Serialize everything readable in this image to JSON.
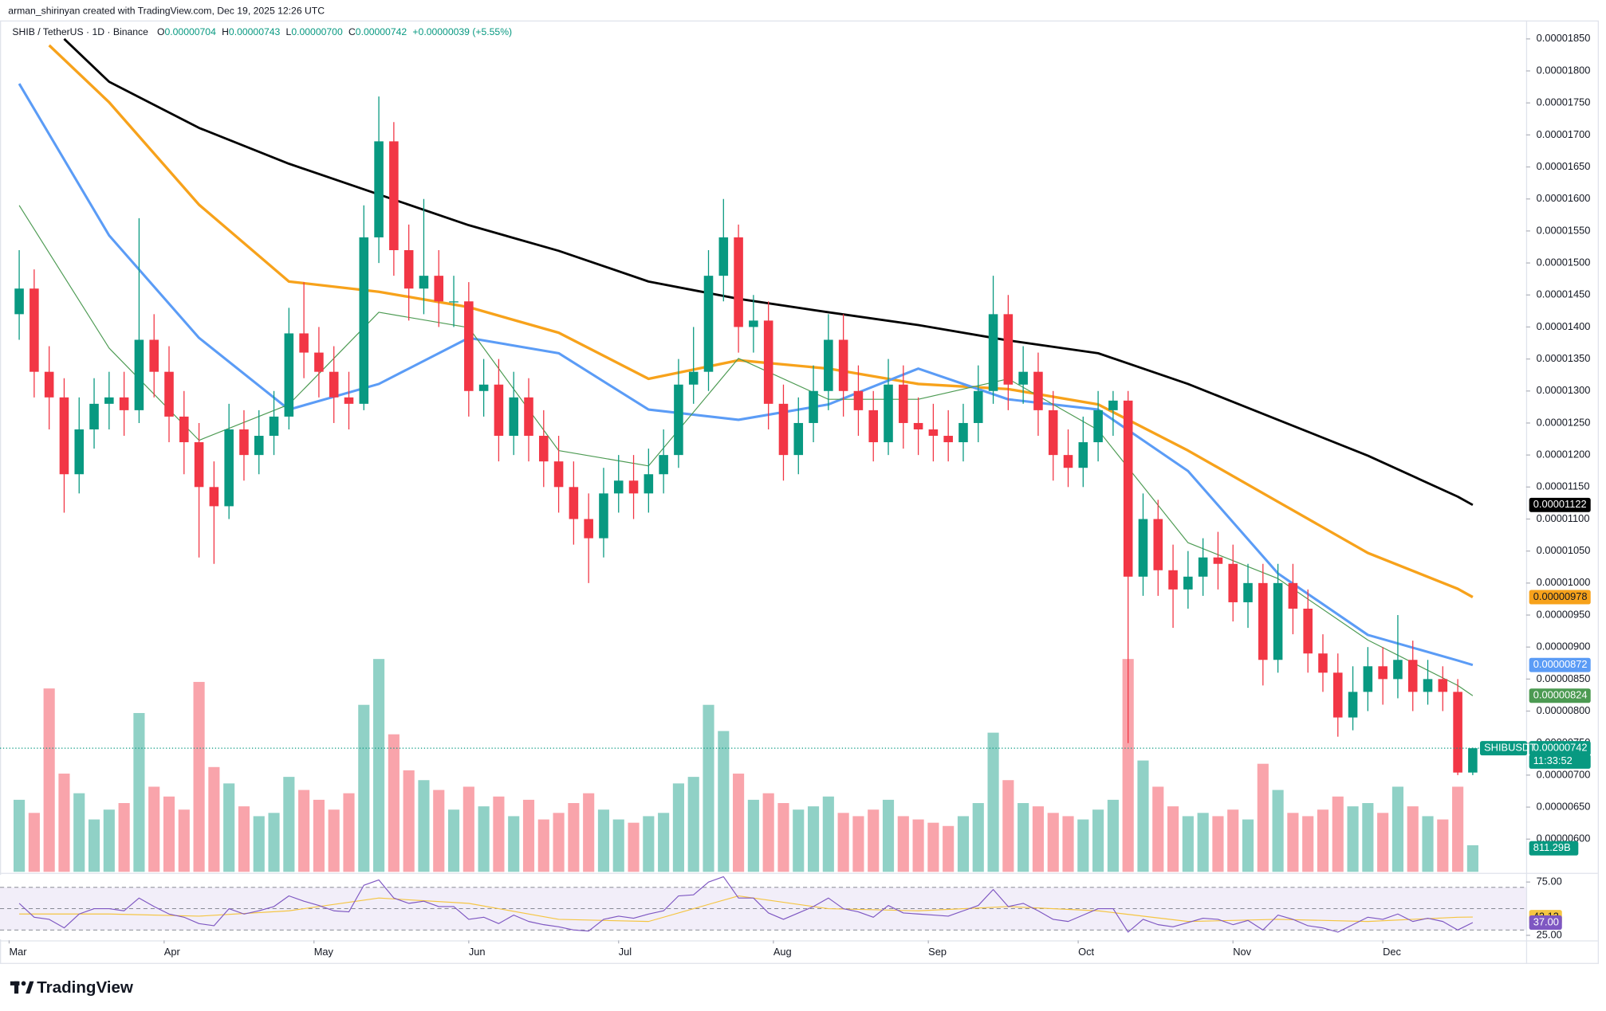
{
  "header": {
    "attribution": "arman_shirinyan created with TradingView.com, Dec 19, 2025 12:26 UTC",
    "symbol": "SHIB / TetherUS · 1D · Binance",
    "ohlc": [
      {
        "prefix": "O",
        "value": "0.00000704"
      },
      {
        "prefix": "H",
        "value": "0.00000743"
      },
      {
        "prefix": "L",
        "value": "0.00000700"
      },
      {
        "prefix": "C",
        "value": "0.00000742"
      }
    ],
    "change": "+0.00000039 (+5.55%)"
  },
  "brand": "TradingView",
  "chart_data": {
    "type": "candlestick",
    "candles": {
      "up_color": "#089981",
      "down_color": "#f23645",
      "open": [
        1.42e-05,
        1.46e-05,
        1.33e-05,
        1.29e-05,
        1.17e-05,
        1.24e-05,
        1.28e-05,
        1.29e-05,
        1.27e-05,
        1.38e-05,
        1.33e-05,
        1.26e-05,
        1.22e-05,
        1.15e-05,
        1.12e-05,
        1.24e-05,
        1.2e-05,
        1.23e-05,
        1.26e-05,
        1.39e-05,
        1.36e-05,
        1.33e-05,
        1.29e-05,
        1.28e-05,
        1.54e-05,
        1.69e-05,
        1.52e-05,
        1.46e-05,
        1.48e-05,
        1.44e-05,
        1.44e-05,
        1.3e-05,
        1.31e-05,
        1.23e-05,
        1.29e-05,
        1.23e-05,
        1.19e-05,
        1.15e-05,
        1.1e-05,
        1.07e-05,
        1.14e-05,
        1.16e-05,
        1.14e-05,
        1.17e-05,
        1.2e-05,
        1.31e-05,
        1.33e-05,
        1.48e-05,
        1.54e-05,
        1.4e-05,
        1.41e-05,
        1.28e-05,
        1.2e-05,
        1.25e-05,
        1.3e-05,
        1.38e-05,
        1.3e-05,
        1.27e-05,
        1.22e-05,
        1.31e-05,
        1.25e-05,
        1.24e-05,
        1.23e-05,
        1.22e-05,
        1.25e-05,
        1.3e-05,
        1.42e-05,
        1.31e-05,
        1.33e-05,
        1.27e-05,
        1.2e-05,
        1.18e-05,
        1.22e-05,
        1.27e-05,
        1.285e-05,
        1.01e-05,
        1.1e-05,
        1.02e-05,
        9.9e-06,
        1.01e-05,
        1.04e-05,
        1.03e-05,
        9.7e-06,
        1e-05,
        8.8e-06,
        1e-05,
        9.6e-06,
        8.9e-06,
        8.6e-06,
        7.9e-06,
        8.3e-06,
        8.7e-06,
        8.5e-06,
        8.8e-06,
        8.3e-06,
        8.5e-06,
        8.3e-06,
        7.04e-06
      ],
      "high": [
        1.52e-05,
        1.49e-05,
        1.37e-05,
        1.32e-05,
        1.29e-05,
        1.32e-05,
        1.33e-05,
        1.33e-05,
        1.57e-05,
        1.42e-05,
        1.37e-05,
        1.3e-05,
        1.25e-05,
        1.19e-05,
        1.28e-05,
        1.27e-05,
        1.27e-05,
        1.3e-05,
        1.43e-05,
        1.47e-05,
        1.4e-05,
        1.37e-05,
        1.33e-05,
        1.59e-05,
        1.76e-05,
        1.72e-05,
        1.56e-05,
        1.6e-05,
        1.52e-05,
        1.48e-05,
        1.47e-05,
        1.35e-05,
        1.35e-05,
        1.33e-05,
        1.32e-05,
        1.27e-05,
        1.23e-05,
        1.19e-05,
        1.14e-05,
        1.18e-05,
        1.2e-05,
        1.2e-05,
        1.21e-05,
        1.24e-05,
        1.35e-05,
        1.4e-05,
        1.52e-05,
        1.6e-05,
        1.56e-05,
        1.45e-05,
        1.44e-05,
        1.31e-05,
        1.29e-05,
        1.34e-05,
        1.42e-05,
        1.42e-05,
        1.34e-05,
        1.3e-05,
        1.35e-05,
        1.34e-05,
        1.29e-05,
        1.28e-05,
        1.27e-05,
        1.28e-05,
        1.34e-05,
        1.48e-05,
        1.45e-05,
        1.37e-05,
        1.36e-05,
        1.3e-05,
        1.24e-05,
        1.26e-05,
        1.3e-05,
        1.3e-05,
        1.3e-05,
        1.14e-05,
        1.13e-05,
        1.06e-05,
        1.05e-05,
        1.07e-05,
        1.08e-05,
        1.06e-05,
        1.03e-05,
        1.03e-05,
        1.03e-05,
        1.03e-05,
        9.9e-06,
        9.2e-06,
        8.9e-06,
        8.7e-06,
        9e-06,
        9e-06,
        9.5e-06,
        9.1e-06,
        8.8e-06,
        8.7e-06,
        8.5e-06,
        7.43e-06
      ],
      "low": [
        1.38e-05,
        1.29e-05,
        1.24e-05,
        1.11e-05,
        1.14e-05,
        1.21e-05,
        1.24e-05,
        1.23e-05,
        1.25e-05,
        1.29e-05,
        1.22e-05,
        1.17e-05,
        1.04e-05,
        1.03e-05,
        1.1e-05,
        1.16e-05,
        1.17e-05,
        1.2e-05,
        1.24e-05,
        1.32e-05,
        1.29e-05,
        1.25e-05,
        1.24e-05,
        1.27e-05,
        1.5e-05,
        1.48e-05,
        1.41e-05,
        1.42e-05,
        1.4e-05,
        1.4e-05,
        1.26e-05,
        1.26e-05,
        1.19e-05,
        1.2e-05,
        1.19e-05,
        1.15e-05,
        1.11e-05,
        1.06e-05,
        1e-05,
        1.04e-05,
        1.11e-05,
        1.1e-05,
        1.11e-05,
        1.14e-05,
        1.18e-05,
        1.28e-05,
        1.3e-05,
        1.44e-05,
        1.36e-05,
        1.36e-05,
        1.24e-05,
        1.16e-05,
        1.17e-05,
        1.22e-05,
        1.27e-05,
        1.26e-05,
        1.23e-05,
        1.19e-05,
        1.2e-05,
        1.21e-05,
        1.2e-05,
        1.19e-05,
        1.19e-05,
        1.19e-05,
        1.22e-05,
        1.28e-05,
        1.27e-05,
        1.28e-05,
        1.23e-05,
        1.16e-05,
        1.15e-05,
        1.15e-05,
        1.19e-05,
        1.23e-05,
        7.5e-06,
        9.8e-06,
        9.8e-06,
        9.3e-06,
        9.6e-06,
        9.8e-06,
        9.9e-06,
        9.4e-06,
        9.3e-06,
        8.4e-06,
        8.6e-06,
        9.2e-06,
        8.6e-06,
        8.3e-06,
        7.6e-06,
        7.7e-06,
        8e-06,
        8.1e-06,
        8.2e-06,
        8e-06,
        8.1e-06,
        8e-06,
        7e-06,
        7e-06
      ],
      "close": [
        1.46e-05,
        1.33e-05,
        1.29e-05,
        1.17e-05,
        1.24e-05,
        1.28e-05,
        1.29e-05,
        1.27e-05,
        1.38e-05,
        1.33e-05,
        1.26e-05,
        1.22e-05,
        1.15e-05,
        1.12e-05,
        1.24e-05,
        1.2e-05,
        1.23e-05,
        1.26e-05,
        1.39e-05,
        1.36e-05,
        1.33e-05,
        1.29e-05,
        1.28e-05,
        1.54e-05,
        1.69e-05,
        1.52e-05,
        1.46e-05,
        1.48e-05,
        1.44e-05,
        1.44e-05,
        1.3e-05,
        1.31e-05,
        1.23e-05,
        1.29e-05,
        1.23e-05,
        1.19e-05,
        1.15e-05,
        1.1e-05,
        1.07e-05,
        1.14e-05,
        1.16e-05,
        1.14e-05,
        1.17e-05,
        1.2e-05,
        1.31e-05,
        1.33e-05,
        1.48e-05,
        1.54e-05,
        1.4e-05,
        1.41e-05,
        1.28e-05,
        1.2e-05,
        1.25e-05,
        1.3e-05,
        1.38e-05,
        1.3e-05,
        1.27e-05,
        1.22e-05,
        1.31e-05,
        1.25e-05,
        1.24e-05,
        1.23e-05,
        1.22e-05,
        1.25e-05,
        1.3e-05,
        1.42e-05,
        1.31e-05,
        1.33e-05,
        1.27e-05,
        1.2e-05,
        1.18e-05,
        1.22e-05,
        1.27e-05,
        1.285e-05,
        1.01e-05,
        1.1e-05,
        1.02e-05,
        9.9e-06,
        1.01e-05,
        1.04e-05,
        1.03e-05,
        9.7e-06,
        1e-05,
        8.8e-06,
        1e-05,
        9.6e-06,
        8.9e-06,
        8.6e-06,
        7.9e-06,
        8.3e-06,
        8.7e-06,
        8.5e-06,
        8.8e-06,
        8.3e-06,
        8.5e-06,
        8.3e-06,
        7.04e-06,
        7.42e-06
      ]
    },
    "xlim": [
      -1.28,
      100.56
    ],
    "xticks": [
      {
        "value": -0.67,
        "label": "Mar"
      },
      {
        "value": 9.67,
        "label": "Apr"
      },
      {
        "value": 19.67,
        "label": "May"
      },
      {
        "value": 30,
        "label": "Jun"
      },
      {
        "value": 40,
        "label": "Jul"
      },
      {
        "value": 50.33,
        "label": "Aug"
      },
      {
        "value": 60.67,
        "label": "Sep"
      },
      {
        "value": 70.67,
        "label": "Oct"
      },
      {
        "value": 81,
        "label": "Nov"
      },
      {
        "value": 91,
        "label": "Dec"
      }
    ],
    "ylim": [
      5.489e-06,
      1.8788e-05
    ],
    "yticks": [
      {
        "value": 6e-06,
        "label": "0.00000600"
      },
      {
        "value": 6.5e-06,
        "label": "0.00000650"
      },
      {
        "value": 7e-06,
        "label": "0.00000700"
      },
      {
        "value": 7.5e-06,
        "label": "0.00000750"
      },
      {
        "value": 8e-06,
        "label": "0.00000800"
      },
      {
        "value": 8.5e-06,
        "label": "0.00000850"
      },
      {
        "value": 9e-06,
        "label": "0.00000900"
      },
      {
        "value": 9.5e-06,
        "label": "0.00000950"
      },
      {
        "value": 1e-05,
        "label": "0.00001000"
      },
      {
        "value": 1.05e-05,
        "label": "0.00001050"
      },
      {
        "value": 1.1e-05,
        "label": "0.00001100"
      },
      {
        "value": 1.15e-05,
        "label": "0.00001150"
      },
      {
        "value": 1.2e-05,
        "label": "0.00001200"
      },
      {
        "value": 1.25e-05,
        "label": "0.00001250"
      },
      {
        "value": 1.3e-05,
        "label": "0.00001300"
      },
      {
        "value": 1.35e-05,
        "label": "0.00001350"
      },
      {
        "value": 1.4e-05,
        "label": "0.00001400"
      },
      {
        "value": 1.45e-05,
        "label": "0.00001450"
      },
      {
        "value": 1.5e-05,
        "label": "0.00001500"
      },
      {
        "value": 1.55e-05,
        "label": "0.00001550"
      },
      {
        "value": 1.6e-05,
        "label": "0.00001600"
      },
      {
        "value": 1.65e-05,
        "label": "0.00001650"
      },
      {
        "value": 1.7e-05,
        "label": "0.00001700"
      },
      {
        "value": 1.75e-05,
        "label": "0.00001750"
      },
      {
        "value": 1.8e-05,
        "label": "0.00001800"
      },
      {
        "value": 1.85e-05,
        "label": "0.00001850"
      }
    ],
    "moving_averages": [
      {
        "color": "#000000",
        "width": 2.2,
        "label": "0.00001122",
        "x": [
          3,
          6,
          12,
          18,
          24,
          30,
          36,
          42,
          48,
          54,
          60,
          66,
          72,
          78,
          84,
          90,
          96,
          97
        ],
        "values": [
          1.85e-05,
          1.783e-05,
          1.711e-05,
          1.655e-05,
          1.607e-05,
          1.559e-05,
          1.519e-05,
          1.471e-05,
          1.444e-05,
          1.423e-05,
          1.403e-05,
          1.379e-05,
          1.359e-05,
          1.311e-05,
          1.255e-05,
          1.199e-05,
          1.135e-05,
          1.122e-05
        ]
      },
      {
        "color": "#f7a21b",
        "width": 2.6,
        "label": "0.00000978",
        "x": [
          2,
          6,
          12,
          18,
          24,
          30,
          36,
          42,
          48,
          54,
          60,
          66,
          72,
          78,
          84,
          90,
          96,
          97
        ],
        "values": [
          1.84e-05,
          1.751e-05,
          1.591e-05,
          1.471e-05,
          1.455e-05,
          1.431e-05,
          1.391e-05,
          1.319e-05,
          1.348e-05,
          1.335e-05,
          1.311e-05,
          1.303e-05,
          1.279e-05,
          1.207e-05,
          1.127e-05,
          1.047e-05,
          9.91e-06,
          9.78e-06
        ]
      },
      {
        "color": "#5b9cf6",
        "width": 2.4,
        "label": "0.00000872",
        "x": [
          0,
          6,
          12,
          18,
          24,
          30,
          36,
          42,
          48,
          54,
          60,
          66,
          72,
          78,
          84,
          90,
          96,
          97
        ],
        "values": [
          1.78e-05,
          1.543e-05,
          1.383e-05,
          1.271e-05,
          1.311e-05,
          1.383e-05,
          1.359e-05,
          1.271e-05,
          1.255e-05,
          1.279e-05,
          1.335e-05,
          1.287e-05,
          1.271e-05,
          1.175e-05,
          1.015e-05,
          9.19e-06,
          8.79e-06,
          8.72e-06
        ]
      },
      {
        "color": "#4c9a52",
        "width": 0.9,
        "label": "0.00000824",
        "x": [
          0,
          6,
          12,
          18,
          24,
          30,
          36,
          42,
          48,
          54,
          60,
          66,
          72,
          78,
          84,
          90,
          96,
          97
        ],
        "values": [
          1.59e-05,
          1.367e-05,
          1.223e-05,
          1.279e-05,
          1.423e-05,
          1.399e-05,
          1.207e-05,
          1.183e-05,
          1.351e-05,
          1.287e-05,
          1.287e-05,
          1.319e-05,
          1.239e-05,
          1.063e-05,
          1.007e-05,
          9.11e-06,
          8.4e-06,
          8.24e-06
        ]
      }
    ],
    "last_price": {
      "label": "0.00000742",
      "symbol": "SHIBUSDT",
      "countdown": "11:33:52"
    },
    "volume": {
      "vlim": [
        0,
        26000
      ],
      "label": "811.29B",
      "values": [
        2200,
        1800,
        5600,
        3000,
        2400,
        1600,
        1900,
        2100,
        4850,
        2600,
        2300,
        1900,
        5800,
        3200,
        2700,
        2000,
        1700,
        1800,
        2900,
        2500,
        2200,
        1900,
        2400,
        5100,
        6500,
        4200,
        3100,
        2800,
        2500,
        1900,
        2600,
        2000,
        2300,
        1700,
        2200,
        1600,
        1800,
        2100,
        2400,
        1900,
        1600,
        1500,
        1700,
        1800,
        2700,
        2900,
        5100,
        4300,
        3000,
        2200,
        2400,
        2100,
        1900,
        2000,
        2300,
        1800,
        1700,
        1900,
        2200,
        1700,
        1600,
        1500,
        1400,
        1700,
        2100,
        4250,
        2800,
        2100,
        2000,
        1800,
        1700,
        1600,
        1900,
        2200,
        6500,
        3400,
        2600,
        2000,
        1700,
        1800,
        1700,
        1900,
        1600,
        3300,
        2500,
        1800,
        1700,
        1900,
        2300,
        2000,
        2100,
        1800,
        2600,
        2000,
        1700,
        1600,
        2600,
        811.29
      ]
    },
    "rsi": {
      "color": "#7e57c2",
      "label": "37.00",
      "ylim": [
        21.2,
        81.7
      ],
      "levels": [
        30,
        50,
        70
      ],
      "yticks": [
        {
          "value": 75,
          "label": "75.00"
        },
        {
          "value": 25,
          "label": "25.00"
        }
      ],
      "values": [
        55,
        42,
        40,
        32,
        45,
        50,
        50,
        48,
        60,
        52,
        45,
        42,
        36,
        34,
        50,
        45,
        48,
        52,
        62,
        57,
        53,
        48,
        47,
        72,
        77,
        60,
        55,
        57,
        52,
        52,
        40,
        42,
        36,
        44,
        38,
        35,
        33,
        30,
        29,
        40,
        43,
        41,
        45,
        48,
        62,
        63,
        75,
        80,
        60,
        60,
        46,
        40,
        46,
        52,
        60,
        50,
        47,
        42,
        53,
        46,
        45,
        44,
        43,
        48,
        53,
        68,
        52,
        55,
        48,
        40,
        38,
        44,
        50,
        50,
        28,
        40,
        35,
        33,
        37,
        41,
        40,
        35,
        39,
        30,
        44,
        40,
        34,
        32,
        28,
        35,
        42,
        40,
        45,
        38,
        41,
        38,
        30,
        37
      ],
      "ma": {
        "color": "#f5c542",
        "label": "42.13",
        "x": [
          0,
          6,
          12,
          18,
          24,
          30,
          36,
          42,
          48,
          54,
          60,
          66,
          72,
          78,
          84,
          90,
          96,
          97
        ],
        "values": [
          45,
          45,
          43,
          48,
          60,
          55,
          40,
          38,
          62,
          50,
          48,
          52,
          48,
          38,
          40,
          38,
          42,
          42.13
        ]
      }
    }
  }
}
